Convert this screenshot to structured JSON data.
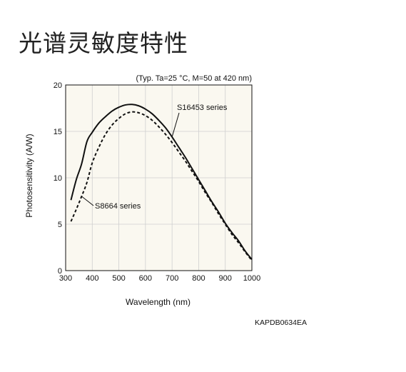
{
  "page": {
    "title": "光谱灵敏度特性"
  },
  "chart_data": {
    "type": "line",
    "conditions": "(Typ. Ta=25 °C, M=50 at 420 nm)",
    "xlabel": "Wavelength (nm)",
    "ylabel": "Photosensitivity (A/W)",
    "xlim": [
      300,
      1000
    ],
    "ylim": [
      0,
      20
    ],
    "xticks": [
      "300",
      "400",
      "500",
      "600",
      "700",
      "800",
      "900",
      "1000"
    ],
    "yticks": [
      "0",
      "5",
      "10",
      "15",
      "20"
    ],
    "grid": true,
    "code": "KAPDB0634EA",
    "series": [
      {
        "name": "S16453 series",
        "style": "solid",
        "points": [
          [
            320,
            7.6
          ],
          [
            340,
            9.8
          ],
          [
            360,
            11.5
          ],
          [
            380,
            13.9
          ],
          [
            400,
            14.9
          ],
          [
            425,
            15.9
          ],
          [
            450,
            16.6
          ],
          [
            475,
            17.2
          ],
          [
            500,
            17.6
          ],
          [
            525,
            17.85
          ],
          [
            550,
            17.9
          ],
          [
            575,
            17.75
          ],
          [
            600,
            17.4
          ],
          [
            625,
            16.9
          ],
          [
            650,
            16.2
          ],
          [
            675,
            15.4
          ],
          [
            700,
            14.4
          ],
          [
            725,
            13.3
          ],
          [
            750,
            12.2
          ],
          [
            775,
            11.0
          ],
          [
            800,
            9.8
          ],
          [
            825,
            8.6
          ],
          [
            850,
            7.4
          ],
          [
            875,
            6.3
          ],
          [
            900,
            5.1
          ],
          [
            925,
            4.1
          ],
          [
            950,
            3.2
          ],
          [
            975,
            2.1
          ],
          [
            1000,
            1.2
          ]
        ]
      },
      {
        "name": "S8664 series",
        "style": "dashed",
        "points": [
          [
            320,
            5.3
          ],
          [
            340,
            6.6
          ],
          [
            360,
            8.0
          ],
          [
            380,
            9.5
          ],
          [
            400,
            11.6
          ],
          [
            425,
            13.3
          ],
          [
            450,
            14.7
          ],
          [
            475,
            15.7
          ],
          [
            500,
            16.4
          ],
          [
            525,
            16.9
          ],
          [
            550,
            17.1
          ],
          [
            575,
            17.0
          ],
          [
            600,
            16.7
          ],
          [
            625,
            16.2
          ],
          [
            650,
            15.5
          ],
          [
            675,
            14.7
          ],
          [
            700,
            13.8
          ],
          [
            725,
            12.8
          ],
          [
            750,
            11.8
          ],
          [
            775,
            10.7
          ],
          [
            800,
            9.6
          ],
          [
            825,
            8.4
          ],
          [
            850,
            7.3
          ],
          [
            875,
            6.1
          ],
          [
            900,
            5.0
          ],
          [
            925,
            3.9
          ],
          [
            950,
            3.0
          ],
          [
            975,
            2.0
          ],
          [
            1000,
            1.1
          ]
        ]
      }
    ]
  },
  "colors": {
    "plot_background": "#faf8f0",
    "grid": "#cfcfcf",
    "line": "#111111"
  }
}
